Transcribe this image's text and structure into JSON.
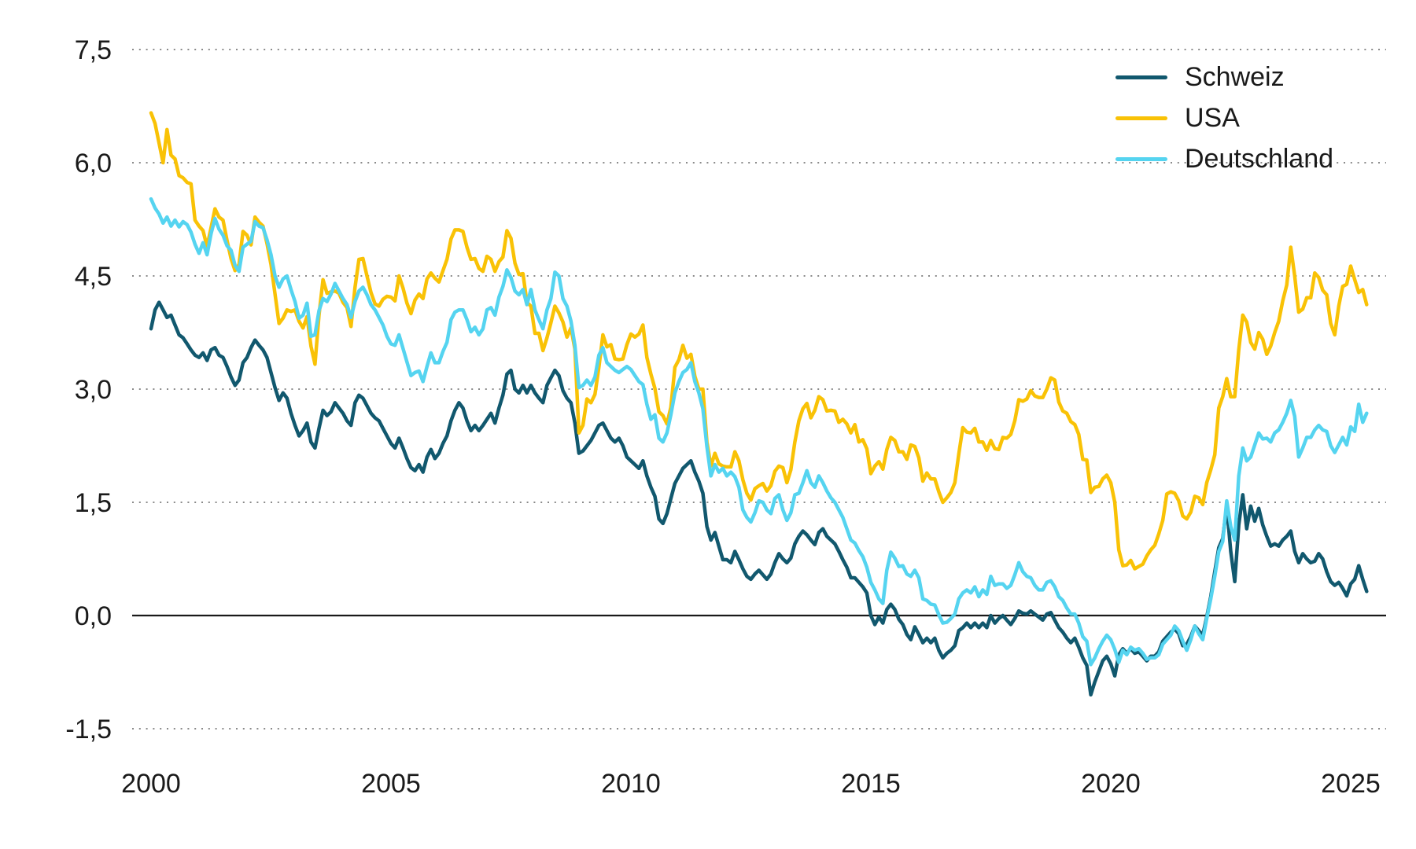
{
  "chart_data": {
    "type": "line",
    "title": "",
    "xlabel": "",
    "ylabel": "",
    "x_start_year": 2000,
    "frequency": "monthly",
    "x_tick_years": [
      2000,
      2005,
      2010,
      2015,
      2020,
      2025
    ],
    "x_tick_labels": [
      "2000",
      "2005",
      "2010",
      "2015",
      "2020",
      "2025"
    ],
    "y_ticks": [
      7.5,
      6.0,
      4.5,
      3.0,
      1.5,
      0.0,
      -1.5
    ],
    "y_tick_labels": [
      "7,5",
      "6,0",
      "4,5",
      "3,0",
      "1,5",
      "0,0",
      "-1,5"
    ],
    "ylim": [
      -1.5,
      7.5
    ],
    "grid": "dotted-horizontal",
    "zero_line": true,
    "legend_position": "top-right",
    "series": [
      {
        "name": "Schweiz",
        "color": "#11586E",
        "values": [
          3.8,
          4.05,
          4.15,
          4.05,
          3.95,
          3.98,
          3.85,
          3.72,
          3.68,
          3.6,
          3.52,
          3.45,
          3.42,
          3.48,
          3.38,
          3.52,
          3.55,
          3.45,
          3.42,
          3.3,
          3.16,
          3.05,
          3.12,
          3.35,
          3.42,
          3.55,
          3.65,
          3.58,
          3.52,
          3.42,
          3.22,
          3.02,
          2.85,
          2.95,
          2.88,
          2.68,
          2.52,
          2.38,
          2.45,
          2.55,
          2.3,
          2.22,
          2.48,
          2.72,
          2.65,
          2.7,
          2.82,
          2.75,
          2.68,
          2.58,
          2.52,
          2.82,
          2.92,
          2.88,
          2.78,
          2.68,
          2.62,
          2.58,
          2.48,
          2.38,
          2.28,
          2.22,
          2.35,
          2.22,
          2.08,
          1.96,
          1.92,
          2.0,
          1.9,
          2.1,
          2.2,
          2.08,
          2.15,
          2.28,
          2.38,
          2.58,
          2.72,
          2.82,
          2.75,
          2.58,
          2.45,
          2.52,
          2.45,
          2.52,
          2.6,
          2.68,
          2.55,
          2.75,
          2.92,
          3.2,
          3.25,
          3.0,
          2.95,
          3.05,
          2.95,
          3.05,
          2.95,
          2.88,
          2.82,
          3.05,
          3.15,
          3.25,
          3.18,
          2.98,
          2.88,
          2.82,
          2.55,
          2.15,
          2.18,
          2.25,
          2.32,
          2.42,
          2.52,
          2.55,
          2.45,
          2.35,
          2.3,
          2.35,
          2.25,
          2.1,
          2.05,
          2.0,
          1.95,
          2.05,
          1.85,
          1.7,
          1.58,
          1.28,
          1.22,
          1.35,
          1.55,
          1.75,
          1.85,
          1.95,
          2.0,
          2.05,
          1.9,
          1.78,
          1.62,
          1.18,
          1.0,
          1.1,
          0.92,
          0.74,
          0.74,
          0.7,
          0.85,
          0.74,
          0.62,
          0.52,
          0.48,
          0.55,
          0.6,
          0.54,
          0.48,
          0.55,
          0.7,
          0.82,
          0.75,
          0.7,
          0.76,
          0.95,
          1.05,
          1.12,
          1.07,
          1.0,
          0.94,
          1.1,
          1.15,
          1.05,
          1.0,
          0.95,
          0.85,
          0.74,
          0.64,
          0.5,
          0.5,
          0.44,
          0.38,
          0.3,
          0.0,
          -0.12,
          -0.02,
          -0.1,
          0.08,
          0.15,
          0.08,
          -0.05,
          -0.12,
          -0.25,
          -0.32,
          -0.15,
          -0.25,
          -0.36,
          -0.3,
          -0.36,
          -0.3,
          -0.46,
          -0.56,
          -0.5,
          -0.46,
          -0.4,
          -0.2,
          -0.16,
          -0.1,
          -0.16,
          -0.1,
          -0.16,
          -0.1,
          -0.16,
          0.0,
          -0.1,
          -0.04,
          0.0,
          -0.06,
          -0.12,
          -0.04,
          0.06,
          0.03,
          0.02,
          0.06,
          0.02,
          -0.02,
          -0.06,
          0.02,
          0.04,
          -0.06,
          -0.16,
          -0.22,
          -0.3,
          -0.36,
          -0.3,
          -0.42,
          -0.56,
          -0.66,
          -1.05,
          -0.88,
          -0.74,
          -0.6,
          -0.54,
          -0.64,
          -0.8,
          -0.52,
          -0.44,
          -0.5,
          -0.44,
          -0.5,
          -0.48,
          -0.54,
          -0.6,
          -0.54,
          -0.54,
          -0.48,
          -0.34,
          -0.28,
          -0.22,
          -0.18,
          -0.24,
          -0.4,
          -0.38,
          -0.28,
          -0.14,
          -0.2,
          -0.26,
          -0.02,
          0.25,
          0.58,
          0.9,
          1.02,
          1.45,
          0.85,
          0.45,
          1.2,
          1.6,
          1.15,
          1.45,
          1.25,
          1.42,
          1.2,
          1.05,
          0.92,
          0.95,
          0.92,
          1.0,
          1.05,
          1.12,
          0.85,
          0.7,
          0.82,
          0.75,
          0.7,
          0.72,
          0.82,
          0.75,
          0.58,
          0.45,
          0.4,
          0.44,
          0.36,
          0.26,
          0.42,
          0.48,
          0.66,
          0.48,
          0.32
        ]
      },
      {
        "name": "USA",
        "color": "#F9C206",
        "values": [
          6.66,
          6.52,
          6.26,
          6.0,
          6.44,
          6.1,
          6.05,
          5.83,
          5.8,
          5.74,
          5.72,
          5.24,
          5.16,
          5.1,
          4.89,
          5.14,
          5.39,
          5.28,
          5.24,
          4.97,
          4.73,
          4.57,
          4.65,
          5.09,
          5.04,
          4.91,
          5.28,
          5.21,
          5.16,
          4.93,
          4.65,
          4.26,
          3.87,
          3.94,
          4.05,
          4.03,
          4.05,
          3.9,
          3.81,
          3.96,
          3.57,
          3.33,
          3.98,
          4.45,
          4.27,
          4.29,
          4.3,
          4.27,
          4.15,
          4.08,
          3.83,
          4.35,
          4.72,
          4.73,
          4.5,
          4.28,
          4.13,
          4.1,
          4.19,
          4.23,
          4.22,
          4.17,
          4.5,
          4.34,
          4.14,
          4.0,
          4.18,
          4.26,
          4.2,
          4.46,
          4.54,
          4.47,
          4.42,
          4.57,
          4.72,
          4.99,
          5.11,
          5.11,
          5.09,
          4.88,
          4.72,
          4.73,
          4.6,
          4.56,
          4.76,
          4.72,
          4.56,
          4.69,
          4.75,
          5.1,
          5.0,
          4.67,
          4.52,
          4.53,
          4.15,
          4.1,
          3.74,
          3.74,
          3.51,
          3.68,
          3.88,
          4.1,
          4.01,
          3.89,
          3.69,
          3.81,
          3.53,
          2.42,
          2.52,
          2.87,
          2.82,
          2.93,
          3.29,
          3.72,
          3.56,
          3.59,
          3.4,
          3.39,
          3.4,
          3.59,
          3.73,
          3.69,
          3.73,
          3.85,
          3.42,
          3.2,
          3.01,
          2.7,
          2.65,
          2.54,
          2.76,
          3.29,
          3.39,
          3.58,
          3.41,
          3.46,
          3.17,
          3.0,
          3.0,
          2.3,
          1.98,
          2.15,
          2.01,
          1.98,
          1.97,
          1.97,
          2.17,
          2.05,
          1.8,
          1.62,
          1.53,
          1.68,
          1.72,
          1.75,
          1.65,
          1.72,
          1.91,
          1.98,
          1.96,
          1.76,
          1.93,
          2.3,
          2.58,
          2.74,
          2.81,
          2.62,
          2.72,
          2.9,
          2.86,
          2.71,
          2.72,
          2.71,
          2.56,
          2.6,
          2.54,
          2.42,
          2.53,
          2.3,
          2.33,
          2.21,
          1.88,
          1.98,
          2.04,
          1.94,
          2.2,
          2.36,
          2.32,
          2.17,
          2.17,
          2.07,
          2.26,
          2.24,
          2.09,
          1.78,
          1.89,
          1.81,
          1.81,
          1.64,
          1.5,
          1.56,
          1.63,
          1.76,
          2.14,
          2.49,
          2.43,
          2.42,
          2.48,
          2.3,
          2.3,
          2.19,
          2.32,
          2.21,
          2.2,
          2.36,
          2.35,
          2.4,
          2.58,
          2.86,
          2.84,
          2.87,
          2.98,
          2.91,
          2.89,
          2.89,
          3.0,
          3.15,
          3.12,
          2.83,
          2.71,
          2.68,
          2.57,
          2.53,
          2.4,
          2.07,
          2.06,
          1.63,
          1.7,
          1.71,
          1.81,
          1.86,
          1.76,
          1.5,
          0.87,
          0.66,
          0.67,
          0.73,
          0.62,
          0.65,
          0.68,
          0.79,
          0.87,
          0.93,
          1.08,
          1.26,
          1.61,
          1.64,
          1.62,
          1.52,
          1.32,
          1.28,
          1.37,
          1.58,
          1.56,
          1.47,
          1.76,
          1.93,
          2.13,
          2.75,
          2.9,
          3.14,
          2.9,
          2.9,
          3.52,
          3.98,
          3.89,
          3.62,
          3.53,
          3.75,
          3.66,
          3.46,
          3.57,
          3.75,
          3.9,
          4.17,
          4.38,
          4.88,
          4.5,
          4.02,
          4.06,
          4.21,
          4.21,
          4.54,
          4.48,
          4.31,
          4.25,
          3.87,
          3.72,
          4.1,
          4.36,
          4.39,
          4.63,
          4.45,
          4.28,
          4.32,
          4.12
        ]
      },
      {
        "name": "Deutschland",
        "color": "#55D4F0",
        "values": [
          5.52,
          5.4,
          5.32,
          5.2,
          5.28,
          5.16,
          5.24,
          5.15,
          5.22,
          5.18,
          5.08,
          4.92,
          4.8,
          4.94,
          4.78,
          5.06,
          5.26,
          5.12,
          5.04,
          4.9,
          4.84,
          4.64,
          4.56,
          4.88,
          4.92,
          4.96,
          5.22,
          5.16,
          5.14,
          4.98,
          4.78,
          4.5,
          4.35,
          4.46,
          4.5,
          4.32,
          4.16,
          3.94,
          3.98,
          4.14,
          3.7,
          3.72,
          4.04,
          4.2,
          4.16,
          4.26,
          4.4,
          4.3,
          4.2,
          4.12,
          3.95,
          4.16,
          4.3,
          4.35,
          4.25,
          4.12,
          4.05,
          3.95,
          3.85,
          3.7,
          3.6,
          3.58,
          3.72,
          3.54,
          3.36,
          3.18,
          3.22,
          3.24,
          3.1,
          3.3,
          3.48,
          3.35,
          3.35,
          3.5,
          3.62,
          3.92,
          4.02,
          4.05,
          4.05,
          3.92,
          3.76,
          3.82,
          3.72,
          3.8,
          4.05,
          4.08,
          3.98,
          4.22,
          4.36,
          4.58,
          4.48,
          4.3,
          4.25,
          4.32,
          4.12,
          4.32,
          4.05,
          3.92,
          3.8,
          4.05,
          4.2,
          4.55,
          4.5,
          4.2,
          4.1,
          3.9,
          3.58,
          3.02,
          3.05,
          3.12,
          3.05,
          3.16,
          3.45,
          3.55,
          3.35,
          3.3,
          3.25,
          3.22,
          3.26,
          3.3,
          3.26,
          3.18,
          3.1,
          3.06,
          2.8,
          2.6,
          2.66,
          2.35,
          2.3,
          2.42,
          2.66,
          2.95,
          3.1,
          3.22,
          3.26,
          3.35,
          3.1,
          2.95,
          2.74,
          2.24,
          1.85,
          2.0,
          1.9,
          1.95,
          1.85,
          1.9,
          1.84,
          1.7,
          1.4,
          1.3,
          1.24,
          1.36,
          1.52,
          1.5,
          1.4,
          1.35,
          1.55,
          1.6,
          1.4,
          1.26,
          1.36,
          1.6,
          1.62,
          1.76,
          1.92,
          1.76,
          1.7,
          1.85,
          1.76,
          1.65,
          1.56,
          1.5,
          1.4,
          1.3,
          1.15,
          1.0,
          0.96,
          0.86,
          0.78,
          0.64,
          0.44,
          0.34,
          0.22,
          0.16,
          0.6,
          0.84,
          0.76,
          0.65,
          0.66,
          0.55,
          0.52,
          0.6,
          0.5,
          0.22,
          0.2,
          0.15,
          0.14,
          0.01,
          -0.1,
          -0.09,
          -0.04,
          0.02,
          0.22,
          0.3,
          0.34,
          0.3,
          0.38,
          0.25,
          0.34,
          0.28,
          0.52,
          0.4,
          0.42,
          0.42,
          0.36,
          0.4,
          0.54,
          0.7,
          0.58,
          0.52,
          0.5,
          0.4,
          0.34,
          0.34,
          0.44,
          0.46,
          0.38,
          0.25,
          0.2,
          0.1,
          0.02,
          0.02,
          -0.1,
          -0.28,
          -0.34,
          -0.65,
          -0.56,
          -0.44,
          -0.34,
          -0.26,
          -0.32,
          -0.45,
          -0.62,
          -0.46,
          -0.52,
          -0.42,
          -0.46,
          -0.44,
          -0.5,
          -0.58,
          -0.56,
          -0.56,
          -0.52,
          -0.38,
          -0.32,
          -0.26,
          -0.14,
          -0.2,
          -0.34,
          -0.46,
          -0.32,
          -0.14,
          -0.24,
          -0.32,
          -0.04,
          0.22,
          0.52,
          0.85,
          0.98,
          1.52,
          1.18,
          1.0,
          1.85,
          2.22,
          2.05,
          2.1,
          2.26,
          2.42,
          2.34,
          2.35,
          2.3,
          2.42,
          2.46,
          2.56,
          2.68,
          2.85,
          2.64,
          2.1,
          2.22,
          2.36,
          2.36,
          2.46,
          2.52,
          2.46,
          2.44,
          2.25,
          2.16,
          2.26,
          2.36,
          2.26,
          2.5,
          2.44,
          2.8,
          2.56,
          2.68
        ]
      }
    ]
  }
}
